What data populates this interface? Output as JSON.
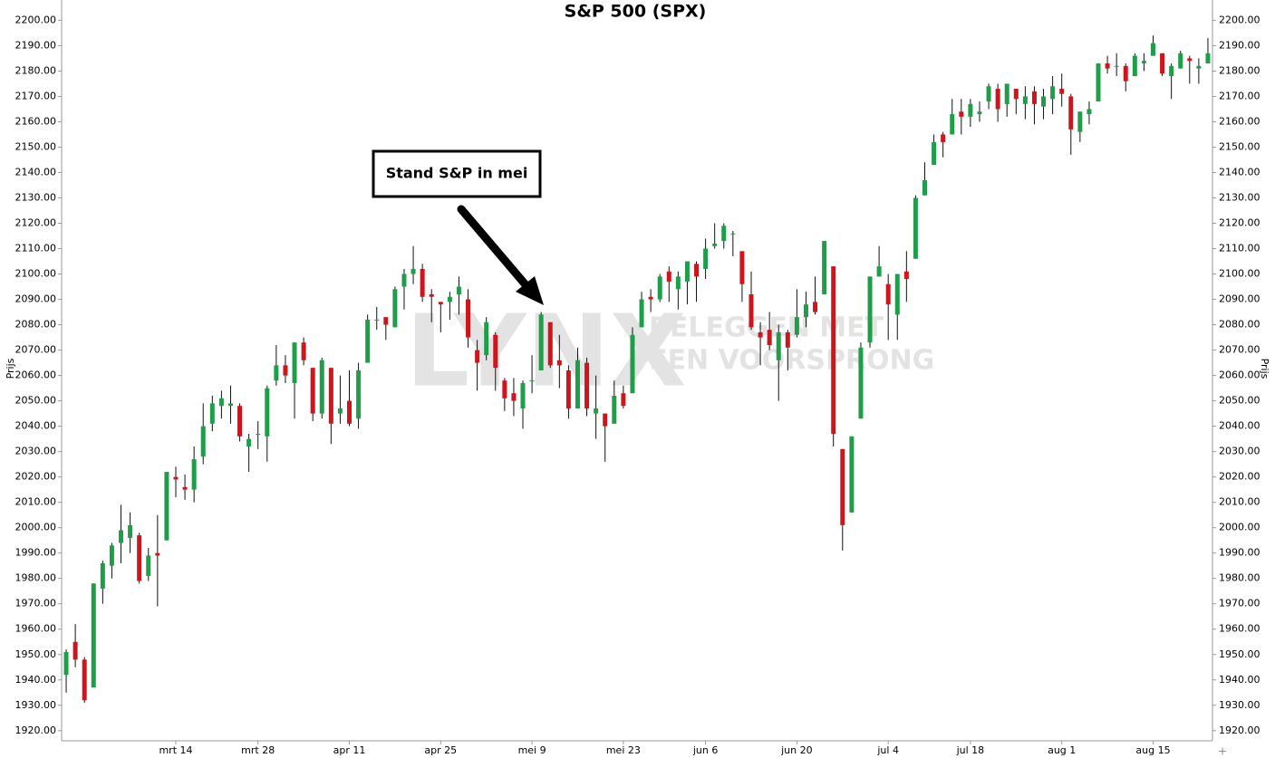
{
  "chart_data": {
    "type": "candlestick",
    "title": "S&P 500 (SPX)",
    "ylabel": "Prijs",
    "annotation": "Stand S&P in mei",
    "watermark": {
      "logo": "LYNX",
      "line1": "BELEGGEN MET",
      "line2": "EEN VOORSPRONG"
    },
    "up_color": "#1f9e49",
    "down_color": "#d0141b",
    "xlim": [
      -0.5,
      125.5
    ],
    "xticks": [
      {
        "value": 12,
        "label": "mrt 14"
      },
      {
        "value": 21,
        "label": "mrt 28"
      },
      {
        "value": 31,
        "label": "apr 11"
      },
      {
        "value": 41,
        "label": "apr 25"
      },
      {
        "value": 51,
        "label": "mei 9"
      },
      {
        "value": 61,
        "label": "mei 23"
      },
      {
        "value": 70,
        "label": "jun 6"
      },
      {
        "value": 80,
        "label": "jun 20"
      },
      {
        "value": 90,
        "label": "jul 4"
      },
      {
        "value": 99,
        "label": "jul 18"
      },
      {
        "value": 109,
        "label": "aug 1"
      },
      {
        "value": 119,
        "label": "aug 15"
      }
    ],
    "ylim": [
      1916,
      2208
    ],
    "yticks": [
      {
        "value": 1920,
        "label": "1920.00"
      },
      {
        "value": 1930,
        "label": "1930.00"
      },
      {
        "value": 1940,
        "label": "1940.00"
      },
      {
        "value": 1950,
        "label": "1950.00"
      },
      {
        "value": 1960,
        "label": "1960.00"
      },
      {
        "value": 1970,
        "label": "1970.00"
      },
      {
        "value": 1980,
        "label": "1980.00"
      },
      {
        "value": 1990,
        "label": "1990.00"
      },
      {
        "value": 2000,
        "label": "2000.00"
      },
      {
        "value": 2010,
        "label": "2010.00"
      },
      {
        "value": 2020,
        "label": "2020.00"
      },
      {
        "value": 2030,
        "label": "2030.00"
      },
      {
        "value": 2040,
        "label": "2040.00"
      },
      {
        "value": 2050,
        "label": "2050.00"
      },
      {
        "value": 2060,
        "label": "2060.00"
      },
      {
        "value": 2070,
        "label": "2070.00"
      },
      {
        "value": 2080,
        "label": "2080.00"
      },
      {
        "value": 2090,
        "label": "2090.00"
      },
      {
        "value": 2100,
        "label": "2100.00"
      },
      {
        "value": 2110,
        "label": "2110.00"
      },
      {
        "value": 2120,
        "label": "2120.00"
      },
      {
        "value": 2130,
        "label": "2130.00"
      },
      {
        "value": 2140,
        "label": "2140.00"
      },
      {
        "value": 2150,
        "label": "2150.00"
      },
      {
        "value": 2160,
        "label": "2160.00"
      },
      {
        "value": 2170,
        "label": "2170.00"
      },
      {
        "value": 2180,
        "label": "2180.00"
      },
      {
        "value": 2190,
        "label": "2190.00"
      },
      {
        "value": 2200,
        "label": "2200.00"
      }
    ],
    "open": [
      1942,
      1955,
      1948,
      1937,
      1976,
      1985,
      1994,
      1996,
      1997,
      1981,
      1990,
      1995,
      2020,
      2016,
      2015,
      2028,
      2041,
      2048,
      2048,
      2048,
      2032,
      2037,
      2036,
      2058,
      2064,
      2057,
      2073,
      2063,
      2045,
      2063,
      2045,
      2050,
      2043,
      2065,
      2082,
      2083,
      2079,
      2095,
      2100,
      2102,
      2092,
      2089,
      2089,
      2092,
      2090,
      2070,
      2068,
      2076,
      2058,
      2053,
      2047,
      2058,
      2062,
      2081,
      2066,
      2062,
      2047,
      2065,
      2045,
      2045,
      2041,
      2053,
      2053,
      2079,
      2091,
      2090,
      2101,
      2094,
      2097,
      2104,
      2102,
      2111,
      2113,
      2116,
      2109,
      2092,
      2077,
      2078,
      2066,
      2077,
      2076,
      2083,
      2089,
      2092,
      2103,
      2031,
      2006,
      2043,
      2073,
      2099,
      2096,
      2084,
      2101,
      2106,
      2131,
      2143,
      2155,
      2155,
      2164,
      2162,
      2163,
      2168,
      2173,
      2167,
      2173,
      2167,
      2172,
      2166,
      2169,
      2173,
      2170,
      2156,
      2163,
      2168,
      2183,
      2182,
      2182,
      2178,
      2183,
      2186,
      2187,
      2178,
      2181,
      2185,
      2181,
      2183
    ],
    "high": [
      1952,
      1962,
      1949,
      1978,
      1987,
      1994,
      2009,
      2006,
      1998,
      1992,
      2005,
      2022,
      2024,
      2021,
      2032,
      2049,
      2052,
      2054,
      2056,
      2049,
      2037,
      2042,
      2056,
      2072,
      2068,
      2073,
      2075,
      2063,
      2067,
      2063,
      2060,
      2062,
      2065,
      2084,
      2087,
      2083,
      2095,
      2102,
      2111,
      2104,
      2094,
      2089,
      2093,
      2099,
      2094,
      2074,
      2083,
      2077,
      2059,
      2059,
      2058,
      2068,
      2085,
      2081,
      2076,
      2064,
      2071,
      2067,
      2060,
      2045,
      2058,
      2056,
      2079,
      2093,
      2094,
      2100,
      2103,
      2101,
      2105,
      2105,
      2114,
      2120,
      2120,
      2117,
      2109,
      2101,
      2081,
      2085,
      2080,
      2078,
      2094,
      2093,
      2099,
      2113,
      2103,
      2031,
      2036,
      2073,
      2099,
      2111,
      2100,
      2100,
      2109,
      2131,
      2144,
      2155,
      2156,
      2169,
      2169,
      2169,
      2168,
      2175,
      2175,
      2175,
      2173,
      2174,
      2174,
      2173,
      2178,
      2179,
      2171,
      2164,
      2168,
      2183,
      2186,
      2187,
      2183,
      2187,
      2187,
      2194,
      2187,
      2183,
      2188,
      2186,
      2185,
      2193
    ],
    "low": [
      1935,
      1945,
      1931,
      1937,
      1970,
      1980,
      1986,
      1990,
      1978,
      1979,
      1969,
      1995,
      2012,
      2011,
      2010,
      2025,
      2038,
      2043,
      2041,
      2034,
      2022,
      2031,
      2026,
      2056,
      2057,
      2043,
      2064,
      2042,
      2043,
      2033,
      2041,
      2040,
      2039,
      2065,
      2078,
      2074,
      2079,
      2086,
      2096,
      2089,
      2081,
      2077,
      2082,
      2084,
      2071,
      2054,
      2066,
      2054,
      2046,
      2044,
      2039,
      2053,
      2062,
      2063,
      2055,
      2043,
      2047,
      2044,
      2035,
      2026,
      2041,
      2047,
      2053,
      2079,
      2085,
      2089,
      2089,
      2086,
      2088,
      2089,
      2098,
      2110,
      2110,
      2107,
      2089,
      2078,
      2064,
      2070,
      2050,
      2062,
      2075,
      2079,
      2084,
      2092,
      2032,
      1991,
      2006,
      2043,
      2071,
      2099,
      2074,
      2074,
      2089,
      2106,
      2131,
      2143,
      2146,
      2155,
      2155,
      2158,
      2160,
      2165,
      2160,
      2162,
      2163,
      2161,
      2159,
      2161,
      2163,
      2166,
      2147,
      2152,
      2159,
      2168,
      2179,
      2178,
      2172,
      2178,
      2180,
      2186,
      2178,
      2169,
      2181,
      2175,
      2175,
      2183
    ],
    "close": [
      1951,
      1948,
      1932,
      1978,
      1986,
      1993,
      1999,
      2001,
      1979,
      1989,
      1989,
      2022,
      2019,
      2015,
      2027,
      2040,
      2049,
      2051,
      2049,
      2036,
      2035,
      2037,
      2055,
      2064,
      2060,
      2073,
      2066,
      2045,
      2066,
      2041,
      2047,
      2041,
      2062,
      2082,
      2082,
      2080,
      2094,
      2100,
      2102,
      2091,
      2091,
      2088,
      2091,
      2095,
      2075,
      2065,
      2081,
      2063,
      2051,
      2050,
      2057,
      2058,
      2084,
      2064,
      2064,
      2047,
      2066,
      2047,
      2047,
      2040,
      2052,
      2048,
      2076,
      2090,
      2090,
      2099,
      2097,
      2099,
      2105,
      2099,
      2110,
      2112,
      2119,
      2116,
      2096,
      2079,
      2075,
      2072,
      2077,
      2071,
      2083,
      2088,
      2085,
      2113,
      2037,
      2001,
      2036,
      2071,
      2099,
      2103,
      2088,
      2100,
      2098,
      2130,
      2137,
      2152,
      2152,
      2163,
      2162,
      2167,
      2164,
      2174,
      2165,
      2175,
      2169,
      2170,
      2167,
      2170,
      2174,
      2171,
      2157,
      2164,
      2165,
      2183,
      2181,
      2182,
      2176,
      2186,
      2184,
      2191,
      2179,
      2182,
      2187,
      2184,
      2182,
      2187
    ]
  }
}
